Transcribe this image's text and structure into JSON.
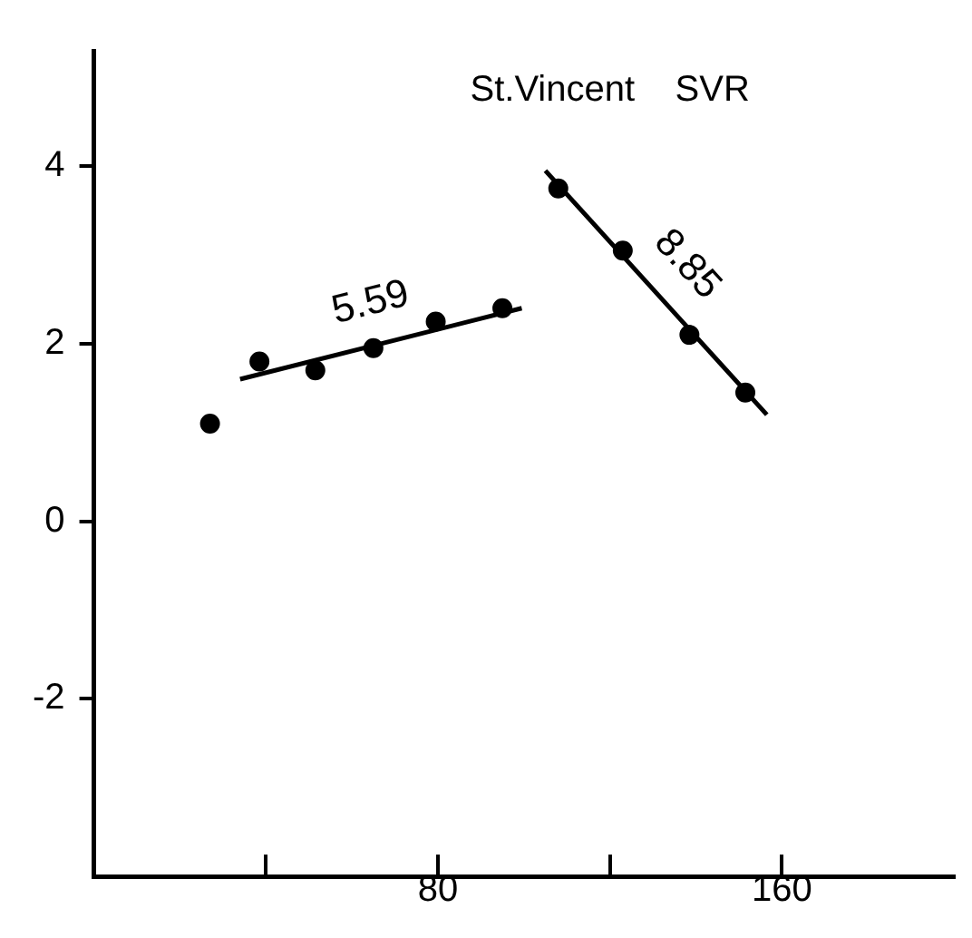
{
  "chart_data": {
    "type": "scatter",
    "title": "St.Vincent    SVR",
    "series": [
      {
        "color": "#000000",
        "marker": "circle",
        "x": [
          27,
          38.5,
          51.5,
          65,
          79.5,
          95,
          108,
          123,
          138.5,
          151.5
        ],
        "values": [
          1.1,
          1.8,
          1.7,
          1.95,
          2.25,
          2.4,
          3.75,
          3.05,
          2.1,
          1.45
        ]
      },
      {
        "type": "line",
        "color": "#000000",
        "marker": "none",
        "x": [
          34,
          99.5
        ],
        "values": [
          1.6,
          2.4
        ]
      },
      {
        "type": "line",
        "color": "#000000",
        "marker": "none",
        "x": [
          105,
          156.5
        ],
        "values": [
          3.95,
          1.2
        ]
      }
    ],
    "annotations": [
      "5.59",
      "8.85"
    ],
    "xlim": [
      0,
      200
    ],
    "xticks": [
      {
        "value": 40,
        "label": null
      },
      80,
      {
        "value": 120,
        "label": null
      },
      160
    ],
    "ylim": [
      -4,
      5.3
    ],
    "yticks": [
      -2,
      0,
      2,
      4
    ],
    "line_style": "solid",
    "grid": false,
    "legend": false
  }
}
